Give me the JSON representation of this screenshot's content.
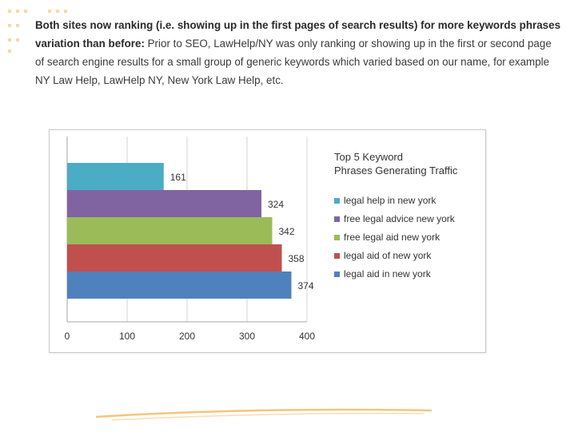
{
  "paragraph": {
    "bold_text": "Both sites now ranking (i.e. showing up in the first pages of search results) for more keywords phrases variation than before:",
    "body_text": " Prior to SEO, LawHelp/NY was only ranking or showing up in the first or second page of search engine results for a small group of generic keywords which varied based on our name, for example NY Law Help, LawHelp NY, New York Law Help, etc."
  },
  "colors": {
    "accent_dots": "#f6d9a6",
    "swoosh": "#f3b65a"
  },
  "chart_data": {
    "type": "bar",
    "orientation": "horizontal",
    "title": "Top 5 Keyword Phrases Generating Traffic",
    "categories": [
      "legal help in new york",
      "free legal advice new york",
      "free legal aid new york",
      "legal aid of new york",
      "legal aid in new york"
    ],
    "values": [
      161,
      324,
      342,
      358,
      374
    ],
    "colors": [
      "#4bacc6",
      "#8064a2",
      "#9bbb59",
      "#c0504d",
      "#4f81bd"
    ],
    "xlim": [
      0,
      400
    ],
    "xticks": [
      0,
      100,
      200,
      300,
      400
    ],
    "grid": true,
    "legend_position": "right"
  }
}
